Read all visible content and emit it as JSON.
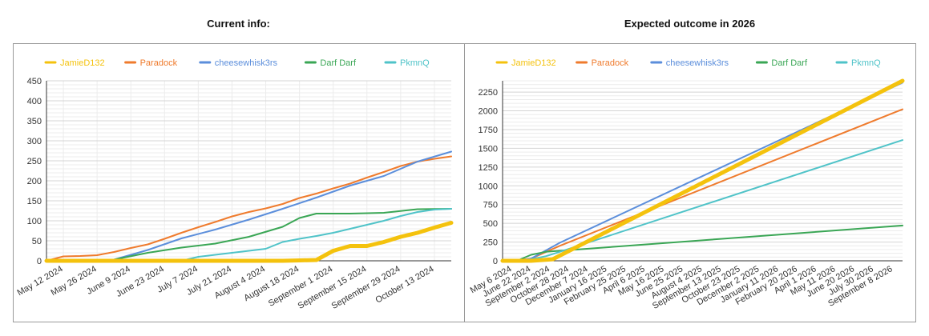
{
  "titles": {
    "left": "Current info:",
    "right": "Expected outcome in 2026"
  },
  "colors": {
    "JamieD132": "#f4c20d",
    "Paradock": "#ef7b2d",
    "cheesewhisk3rs": "#5b8edb",
    "Darf Darf": "#3aa655",
    "PkmnQ": "#4fc3c8"
  },
  "chart_data": [
    {
      "type": "line",
      "title": "Current info:",
      "legend_position": "top",
      "grid": true,
      "x_tick_labels": [
        "May 12 2024",
        "May 26 2024",
        "June 9 2024",
        "June 23 2024",
        "July 7 2024",
        "July 21 2024",
        "August 4 2024",
        "August 18 2024",
        "September 1 2024",
        "September 15 2024",
        "September 29 2024",
        "October 13 2024"
      ],
      "xlim": [
        0,
        24
      ],
      "ylim": [
        0,
        450
      ],
      "y_ticks": [
        0,
        50,
        100,
        150,
        200,
        250,
        300,
        350,
        400,
        450
      ],
      "series": [
        {
          "name": "JamieD132",
          "emphasized": true,
          "x": [
            0,
            2,
            4,
            6,
            8,
            10,
            12,
            14,
            15,
            16,
            17,
            18,
            19,
            20,
            21,
            22,
            23,
            24
          ],
          "values": [
            0,
            0,
            0,
            0,
            0,
            0,
            0,
            0,
            1,
            2,
            25,
            37,
            37,
            47,
            60,
            70,
            83,
            95
          ]
        },
        {
          "name": "Paradock",
          "x": [
            0,
            1,
            2,
            3,
            4,
            5,
            6,
            7,
            8,
            9,
            10,
            11,
            12,
            13,
            14,
            15,
            16,
            17,
            18,
            19,
            20,
            21,
            22,
            23,
            24
          ],
          "values": [
            0,
            11,
            12,
            14,
            22,
            32,
            41,
            55,
            70,
            84,
            97,
            111,
            122,
            131,
            142,
            157,
            168,
            181,
            193,
            208,
            222,
            237,
            248,
            255,
            261
          ]
        },
        {
          "name": "cheesewhisk3rs",
          "x": [
            0,
            2,
            4,
            6,
            8,
            10,
            12,
            14,
            16,
            18,
            20,
            22,
            24
          ],
          "values": [
            0,
            0,
            3,
            27,
            56,
            78,
            103,
            130,
            158,
            188,
            212,
            248,
            273
          ]
        },
        {
          "name": "Darf Darf",
          "x": [
            0,
            2,
            4,
            6,
            8,
            10,
            12,
            14,
            15,
            16,
            18,
            20,
            22,
            24
          ],
          "values": [
            0,
            0,
            3,
            20,
            33,
            43,
            60,
            85,
            107,
            118,
            118,
            120,
            129,
            130
          ]
        },
        {
          "name": "PkmnQ",
          "x": [
            0,
            2,
            4,
            6,
            8,
            9,
            10,
            11,
            12,
            13,
            14,
            15,
            16,
            17,
            18,
            19,
            20,
            21,
            22,
            23,
            24
          ],
          "values": [
            0,
            0,
            0,
            0,
            0,
            10,
            15,
            20,
            25,
            30,
            47,
            55,
            62,
            70,
            80,
            90,
            100,
            112,
            122,
            128,
            130
          ]
        }
      ]
    },
    {
      "type": "line",
      "title": "Expected outcome in 2026",
      "legend_position": "top",
      "grid": true,
      "x_tick_labels": [
        "May 6 2024",
        "June 22 2024",
        "September 2 2024",
        "October 28 2024",
        "December 7 2024",
        "January 16 2025",
        "February 25 2025",
        "April 6 2025",
        "May 16 2025",
        "June 25 2025",
        "August 4 2025",
        "September 13 2025",
        "October 23 2025",
        "December 2 2025",
        "January 11 2026",
        "February 20 2026",
        "April 1 2026",
        "May 11 2026",
        "June 20 2026",
        "July 30 2026",
        "September 8 2026"
      ],
      "xlim": [
        0,
        28
      ],
      "ylim": [
        0,
        2400
      ],
      "y_ticks": [
        0,
        250,
        500,
        750,
        1000,
        1250,
        1500,
        1750,
        2000,
        2250
      ],
      "series": [
        {
          "name": "JamieD132",
          "emphasized": true,
          "x": [
            0,
            2,
            3.5,
            28
          ],
          "values": [
            0,
            0,
            20,
            2400
          ]
        },
        {
          "name": "Paradock",
          "x": [
            0,
            1,
            2,
            4,
            28
          ],
          "values": [
            0,
            10,
            30,
            200,
            2020
          ]
        },
        {
          "name": "cheesewhisk3rs",
          "x": [
            0,
            1,
            2,
            4,
            28
          ],
          "values": [
            0,
            0,
            30,
            240,
            2375
          ]
        },
        {
          "name": "Darf Darf",
          "x": [
            0,
            1,
            2,
            3,
            28
          ],
          "values": [
            0,
            0,
            80,
            120,
            470
          ]
        },
        {
          "name": "PkmnQ",
          "x": [
            0,
            1,
            2,
            3,
            4,
            28
          ],
          "values": [
            0,
            0,
            20,
            60,
            120,
            1610
          ]
        }
      ]
    }
  ]
}
